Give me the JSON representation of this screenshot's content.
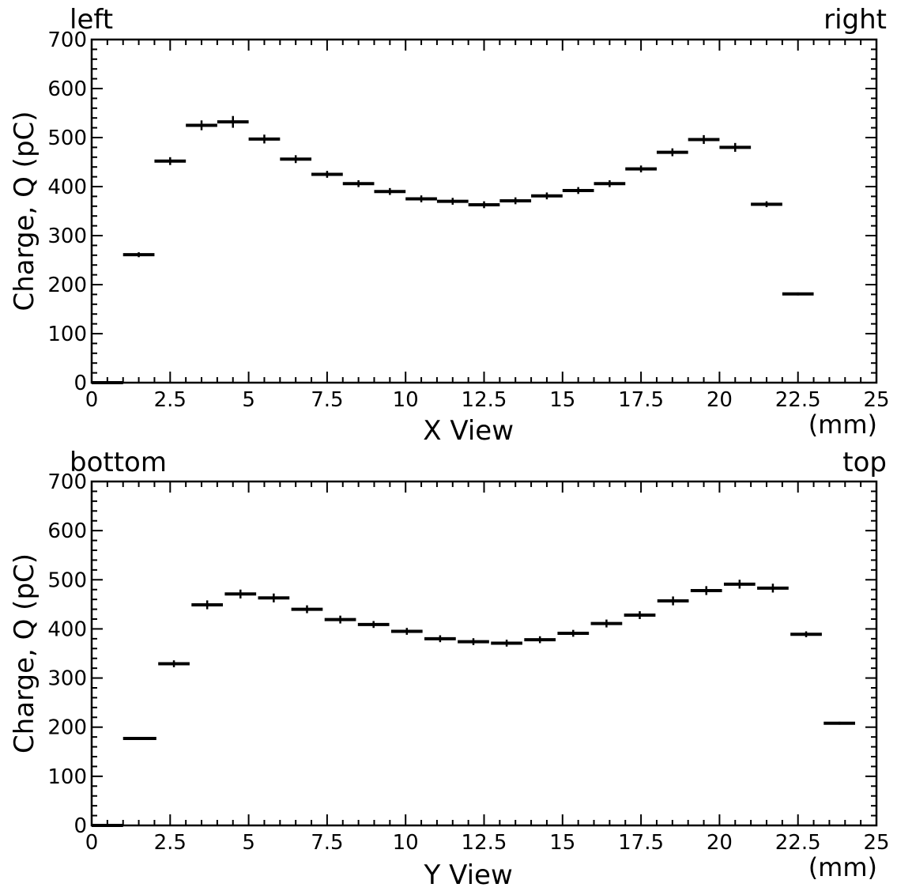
{
  "chart_data": [
    {
      "type": "histogram",
      "corner_left": "left",
      "corner_right": "right",
      "xlabel": "X View",
      "xunit": "(mm)",
      "ylabel": "Charge, Q (pC)",
      "xlim": [
        0,
        25
      ],
      "ylim": [
        0,
        700
      ],
      "xticks": [
        "0",
        "2.5",
        "5",
        "7.5",
        "10",
        "12.5",
        "15",
        "17.5",
        "20",
        "22.5",
        "25"
      ],
      "yticks": [
        "0",
        "100",
        "200",
        "300",
        "400",
        "500",
        "600",
        "700"
      ],
      "bin_width": 1.0,
      "bins": [
        {
          "x0": 0,
          "x1": 1,
          "y": 0,
          "err": 0
        },
        {
          "x0": 1,
          "x1": 2,
          "y": 261,
          "err": 5
        },
        {
          "x0": 2,
          "x1": 3,
          "y": 452,
          "err": 8
        },
        {
          "x0": 3,
          "x1": 4,
          "y": 525,
          "err": 10
        },
        {
          "x0": 4,
          "x1": 5,
          "y": 532,
          "err": 12
        },
        {
          "x0": 5,
          "x1": 6,
          "y": 497,
          "err": 9
        },
        {
          "x0": 6,
          "x1": 7,
          "y": 456,
          "err": 8
        },
        {
          "x0": 7,
          "x1": 8,
          "y": 425,
          "err": 7
        },
        {
          "x0": 8,
          "x1": 9,
          "y": 406,
          "err": 7
        },
        {
          "x0": 9,
          "x1": 10,
          "y": 390,
          "err": 7
        },
        {
          "x0": 10,
          "x1": 11,
          "y": 375,
          "err": 7
        },
        {
          "x0": 11,
          "x1": 12,
          "y": 370,
          "err": 7
        },
        {
          "x0": 12,
          "x1": 13,
          "y": 363,
          "err": 7
        },
        {
          "x0": 13,
          "x1": 14,
          "y": 371,
          "err": 7
        },
        {
          "x0": 14,
          "x1": 15,
          "y": 381,
          "err": 7
        },
        {
          "x0": 15,
          "x1": 16,
          "y": 392,
          "err": 7
        },
        {
          "x0": 16,
          "x1": 17,
          "y": 406,
          "err": 7
        },
        {
          "x0": 17,
          "x1": 18,
          "y": 436,
          "err": 7
        },
        {
          "x0": 18,
          "x1": 19,
          "y": 470,
          "err": 8
        },
        {
          "x0": 19,
          "x1": 20,
          "y": 496,
          "err": 9
        },
        {
          "x0": 20,
          "x1": 21,
          "y": 480,
          "err": 9
        },
        {
          "x0": 21,
          "x1": 22,
          "y": 364,
          "err": 6
        },
        {
          "x0": 22,
          "x1": 23,
          "y": 181,
          "err": 3
        }
      ]
    },
    {
      "type": "histogram",
      "corner_left": "bottom",
      "corner_right": "top",
      "xlabel": "Y View",
      "xunit": "(mm)",
      "ylabel": "Charge, Q (pC)",
      "xlim": [
        0,
        25
      ],
      "ylim": [
        0,
        700
      ],
      "xticks": [
        "0",
        "2.5",
        "5",
        "7.5",
        "10",
        "12.5",
        "15",
        "17.5",
        "20",
        "22.5",
        "25"
      ],
      "yticks": [
        "0",
        "100",
        "200",
        "300",
        "400",
        "500",
        "600",
        "700"
      ],
      "bin_width": 1.06,
      "bins": [
        {
          "x0": 0,
          "x1": 1.0,
          "y": 0,
          "err": 0
        },
        {
          "x0": 1.0,
          "x1": 2.06,
          "y": 177,
          "err": 3
        },
        {
          "x0": 2.12,
          "x1": 3.12,
          "y": 329,
          "err": 7
        },
        {
          "x0": 3.18,
          "x1": 4.18,
          "y": 449,
          "err": 9
        },
        {
          "x0": 4.24,
          "x1": 5.24,
          "y": 471,
          "err": 9
        },
        {
          "x0": 5.3,
          "x1": 6.3,
          "y": 463,
          "err": 9
        },
        {
          "x0": 6.36,
          "x1": 7.36,
          "y": 440,
          "err": 8
        },
        {
          "x0": 7.42,
          "x1": 8.42,
          "y": 419,
          "err": 8
        },
        {
          "x0": 8.48,
          "x1": 9.48,
          "y": 409,
          "err": 7
        },
        {
          "x0": 9.54,
          "x1": 10.54,
          "y": 395,
          "err": 7
        },
        {
          "x0": 10.6,
          "x1": 11.6,
          "y": 380,
          "err": 7
        },
        {
          "x0": 11.66,
          "x1": 12.66,
          "y": 374,
          "err": 7
        },
        {
          "x0": 12.72,
          "x1": 13.72,
          "y": 371,
          "err": 7
        },
        {
          "x0": 13.78,
          "x1": 14.78,
          "y": 378,
          "err": 7
        },
        {
          "x0": 14.84,
          "x1": 15.84,
          "y": 391,
          "err": 7
        },
        {
          "x0": 15.9,
          "x1": 16.9,
          "y": 411,
          "err": 8
        },
        {
          "x0": 16.96,
          "x1": 17.96,
          "y": 428,
          "err": 8
        },
        {
          "x0": 18.02,
          "x1": 19.02,
          "y": 457,
          "err": 9
        },
        {
          "x0": 19.08,
          "x1": 20.08,
          "y": 478,
          "err": 9
        },
        {
          "x0": 20.14,
          "x1": 21.14,
          "y": 491,
          "err": 9
        },
        {
          "x0": 21.2,
          "x1": 22.2,
          "y": 483,
          "err": 9
        },
        {
          "x0": 22.26,
          "x1": 23.26,
          "y": 389,
          "err": 6
        },
        {
          "x0": 23.32,
          "x1": 24.32,
          "y": 208,
          "err": 3
        }
      ]
    }
  ]
}
